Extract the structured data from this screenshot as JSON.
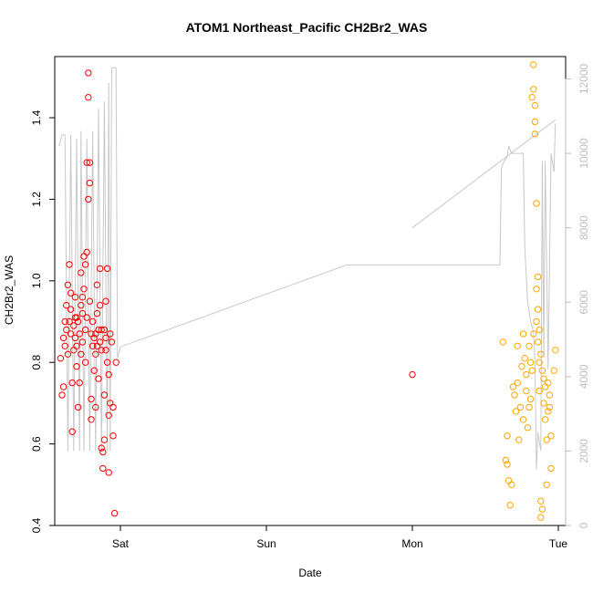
{
  "chart_data": {
    "type": "scatter",
    "title": "ATOM1 Northeast_Pacific CH2Br2_WAS",
    "xlabel": "Date",
    "ylabel": "CH2Br2_WAS",
    "x_axis": {
      "type": "date",
      "ticks": [
        {
          "label": "Sat",
          "pos": 1.0
        },
        {
          "label": "Sun",
          "pos": 2.0
        },
        {
          "label": "Mon",
          "pos": 3.0
        },
        {
          "label": "Tue",
          "pos": 4.0
        }
      ],
      "range": [
        0.55,
        4.05
      ]
    },
    "y_left": {
      "range": [
        0.4,
        1.55
      ],
      "ticks": [
        "0.4",
        "0.6",
        "0.8",
        "1.0",
        "1.2",
        "1.4"
      ]
    },
    "y_right": {
      "range": [
        0,
        12600
      ],
      "ticks": [
        "0",
        "2000",
        "4000",
        "6000",
        "8000",
        "10000",
        "12000"
      ]
    },
    "grid": false,
    "legend": "none",
    "series": [
      {
        "color": "#ff0000",
        "marker": "open-circle",
        "axis": "left",
        "points": [
          [
            0.59,
            0.81
          ],
          [
            0.6,
            0.72
          ],
          [
            0.61,
            0.86
          ],
          [
            0.61,
            0.74
          ],
          [
            0.62,
            0.84
          ],
          [
            0.63,
            0.88
          ],
          [
            0.63,
            0.94
          ],
          [
            0.64,
            0.82
          ],
          [
            0.64,
            0.99
          ],
          [
            0.65,
            1.04
          ],
          [
            0.65,
            0.9
          ],
          [
            0.66,
            0.87
          ],
          [
            0.66,
            0.93
          ],
          [
            0.67,
            0.63
          ],
          [
            0.67,
            0.75
          ],
          [
            0.68,
            0.83
          ],
          [
            0.68,
            0.89
          ],
          [
            0.69,
            0.91
          ],
          [
            0.69,
            0.96
          ],
          [
            0.7,
            0.79
          ],
          [
            0.7,
            0.84
          ],
          [
            0.71,
            0.9
          ],
          [
            0.71,
            0.69
          ],
          [
            0.72,
            0.75
          ],
          [
            0.72,
            0.87
          ],
          [
            0.73,
            0.94
          ],
          [
            0.73,
            1.02
          ],
          [
            0.74,
            0.85
          ],
          [
            0.74,
            0.92
          ],
          [
            0.75,
            0.98
          ],
          [
            0.75,
            1.06
          ],
          [
            0.76,
            0.8
          ],
          [
            0.76,
            0.88
          ],
          [
            0.77,
            1.07
          ],
          [
            0.77,
            1.29
          ],
          [
            0.78,
            1.51
          ],
          [
            0.78,
            1.45
          ],
          [
            0.78,
            1.2
          ],
          [
            0.79,
            1.24
          ],
          [
            0.79,
            0.95
          ],
          [
            0.8,
            0.66
          ],
          [
            0.8,
            0.71
          ],
          [
            0.81,
            0.84
          ],
          [
            0.81,
            0.9
          ],
          [
            0.82,
            0.86
          ],
          [
            0.82,
            0.78
          ],
          [
            0.83,
            0.69
          ],
          [
            0.83,
            0.82
          ],
          [
            0.84,
            0.92
          ],
          [
            0.84,
            0.99
          ],
          [
            0.85,
            0.76
          ],
          [
            0.85,
            0.88
          ],
          [
            0.86,
            0.94
          ],
          [
            0.86,
            1.03
          ],
          [
            0.87,
            0.83
          ],
          [
            0.87,
            0.59
          ],
          [
            0.88,
            0.54
          ],
          [
            0.88,
            0.58
          ],
          [
            0.89,
            0.61
          ],
          [
            0.89,
            0.72
          ],
          [
            0.9,
            0.86
          ],
          [
            0.9,
            0.95
          ],
          [
            0.91,
            1.03
          ],
          [
            0.91,
            0.8
          ],
          [
            0.92,
            0.67
          ],
          [
            0.92,
            0.53
          ],
          [
            0.93,
            0.7
          ],
          [
            0.94,
            0.85
          ],
          [
            0.95,
            0.62
          ],
          [
            0.96,
            0.43
          ],
          [
            0.97,
            0.8
          ],
          [
            0.62,
            0.9
          ],
          [
            0.66,
            0.97
          ],
          [
            0.7,
            0.91
          ],
          [
            0.74,
            0.96
          ],
          [
            0.77,
            0.91
          ],
          [
            0.8,
            0.87
          ],
          [
            0.84,
            0.84
          ],
          [
            0.87,
            0.88
          ],
          [
            0.9,
            0.83
          ],
          [
            0.93,
            0.87
          ],
          [
            0.69,
            0.86
          ],
          [
            0.73,
            0.82
          ],
          [
            0.76,
            1.04
          ],
          [
            0.79,
            1.29
          ],
          [
            0.83,
            0.87
          ],
          [
            0.86,
            0.85
          ],
          [
            0.89,
            0.88
          ],
          [
            0.92,
            0.77
          ],
          [
            0.95,
            0.69
          ],
          [
            3.0,
            0.77
          ]
        ]
      },
      {
        "color": "#ffa500",
        "marker": "open-circle",
        "axis": "left",
        "points": [
          [
            3.62,
            0.85
          ],
          [
            3.64,
            0.56
          ],
          [
            3.65,
            0.62
          ],
          [
            3.66,
            0.51
          ],
          [
            3.67,
            0.45
          ],
          [
            3.68,
            0.5
          ],
          [
            3.7,
            0.72
          ],
          [
            3.71,
            0.68
          ],
          [
            3.72,
            0.75
          ],
          [
            3.73,
            0.61
          ],
          [
            3.74,
            0.69
          ],
          [
            3.75,
            0.79
          ],
          [
            3.76,
            0.87
          ],
          [
            3.77,
            0.81
          ],
          [
            3.78,
            0.77
          ],
          [
            3.79,
            0.64
          ],
          [
            3.8,
            0.69
          ],
          [
            3.8,
            0.84
          ],
          [
            3.81,
            0.71
          ],
          [
            3.81,
            0.8
          ],
          [
            3.82,
            0.78
          ],
          [
            3.82,
            1.45
          ],
          [
            3.83,
            1.53
          ],
          [
            3.83,
            1.47
          ],
          [
            3.84,
            1.39
          ],
          [
            3.84,
            1.43
          ],
          [
            3.84,
            1.36
          ],
          [
            3.85,
            1.19
          ],
          [
            3.85,
            0.98
          ],
          [
            3.86,
            1.01
          ],
          [
            3.86,
            0.85
          ],
          [
            3.87,
            0.8
          ],
          [
            3.87,
            0.73
          ],
          [
            3.88,
            0.46
          ],
          [
            3.88,
            0.42
          ],
          [
            3.89,
            0.44
          ],
          [
            3.89,
            0.78
          ],
          [
            3.9,
            0.7
          ],
          [
            3.91,
            0.66
          ],
          [
            3.91,
            0.74
          ],
          [
            3.92,
            0.61
          ],
          [
            3.92,
            0.5
          ],
          [
            3.93,
            0.75
          ],
          [
            3.94,
            0.69
          ],
          [
            3.95,
            0.62
          ],
          [
            3.95,
            0.54
          ],
          [
            3.97,
            0.78
          ],
          [
            3.98,
            0.83
          ],
          [
            3.65,
            0.55
          ],
          [
            3.69,
            0.74
          ],
          [
            3.72,
            0.84
          ],
          [
            3.76,
            0.66
          ],
          [
            3.78,
            0.73
          ],
          [
            3.83,
            0.87
          ],
          [
            3.85,
            0.9
          ],
          [
            3.86,
            0.93
          ],
          [
            3.87,
            0.88
          ],
          [
            3.88,
            0.82
          ],
          [
            3.9,
            0.76
          ],
          [
            3.93,
            0.68
          ],
          [
            3.94,
            0.72
          ]
        ]
      },
      {
        "color": "#c8c8c8",
        "type": "line",
        "axis": "right",
        "points": [
          [
            0.58,
            10200
          ],
          [
            0.6,
            10500
          ],
          [
            0.62,
            10500
          ],
          [
            0.64,
            2000
          ],
          [
            0.66,
            10500
          ],
          [
            0.68,
            2000
          ],
          [
            0.7,
            10400
          ],
          [
            0.72,
            2000
          ],
          [
            0.73,
            10600
          ],
          [
            0.75,
            2000
          ],
          [
            0.77,
            10400
          ],
          [
            0.79,
            2000
          ],
          [
            0.81,
            10600
          ],
          [
            0.83,
            2000
          ],
          [
            0.85,
            11200
          ],
          [
            0.87,
            2000
          ],
          [
            0.89,
            11400
          ],
          [
            0.91,
            2000
          ],
          [
            0.92,
            11900
          ],
          [
            0.93,
            2000
          ],
          [
            0.94,
            12300
          ],
          [
            0.97,
            12300
          ],
          [
            0.98,
            4500
          ],
          [
            1.0,
            4800
          ],
          [
            2.55,
            7000
          ],
          [
            3.6,
            7000
          ],
          [
            3.61,
            9600
          ],
          [
            3.63,
            9800
          ],
          [
            3.65,
            9900
          ],
          [
            3.66,
            10200
          ],
          [
            3.68,
            10000
          ],
          [
            3.7,
            10000
          ],
          [
            3.72,
            10000
          ],
          [
            3.74,
            10000
          ],
          [
            3.76,
            10000
          ],
          [
            3.77,
            7500
          ],
          [
            3.79,
            6000
          ],
          [
            3.81,
            5500
          ],
          [
            3.83,
            5200
          ],
          [
            3.84,
            4400
          ],
          [
            3.85,
            1500
          ],
          [
            3.86,
            2500
          ],
          [
            3.88,
            2000
          ],
          [
            3.89,
            9800
          ],
          [
            3.9,
            4500
          ],
          [
            3.91,
            9800
          ],
          [
            3.93,
            4200
          ],
          [
            3.95,
            10000
          ],
          [
            3.97,
            9500
          ],
          [
            3.98,
            10800
          ]
        ]
      },
      {
        "color": "#c8c8c8",
        "type": "line",
        "axis": "right",
        "points": [
          [
            3.0,
            8000
          ],
          [
            3.98,
            10900
          ]
        ]
      }
    ]
  }
}
